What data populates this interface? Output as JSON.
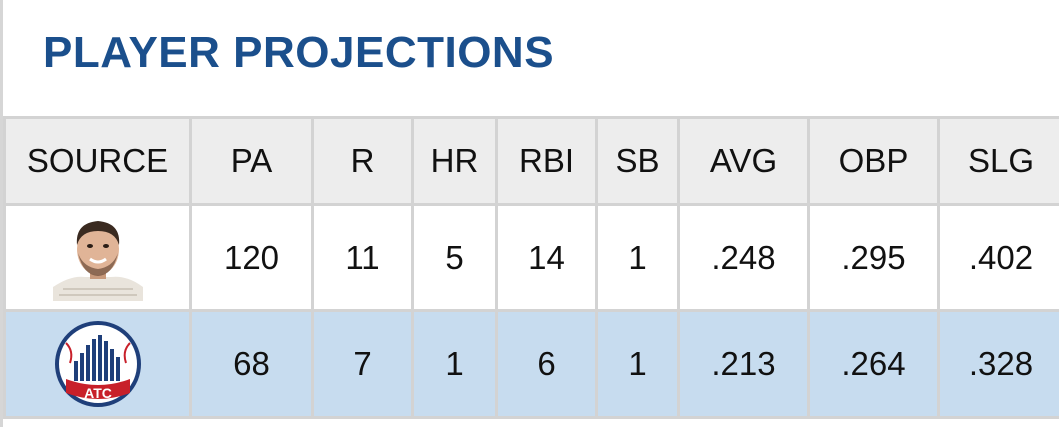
{
  "header": {
    "title": "PLAYER PROJECTIONS"
  },
  "table": {
    "columns": [
      "SOURCE",
      "PA",
      "R",
      "HR",
      "RBI",
      "SB",
      "AVG",
      "OBP",
      "SLG"
    ],
    "rows": [
      {
        "source_icon": "person-avatar-icon",
        "cells": [
          "120",
          "11",
          "5",
          "14",
          "1",
          ".248",
          ".295",
          ".402"
        ]
      },
      {
        "source_icon": "atc-logo-icon",
        "logo_text": "ATC",
        "cells": [
          "68",
          "7",
          "1",
          "6",
          "1",
          ".213",
          ".264",
          ".328"
        ]
      }
    ]
  },
  "colors": {
    "title": "#1b4f8c",
    "header_bg": "#ededed",
    "row_highlight": "#c7dcef",
    "border": "#d3d3d3"
  }
}
